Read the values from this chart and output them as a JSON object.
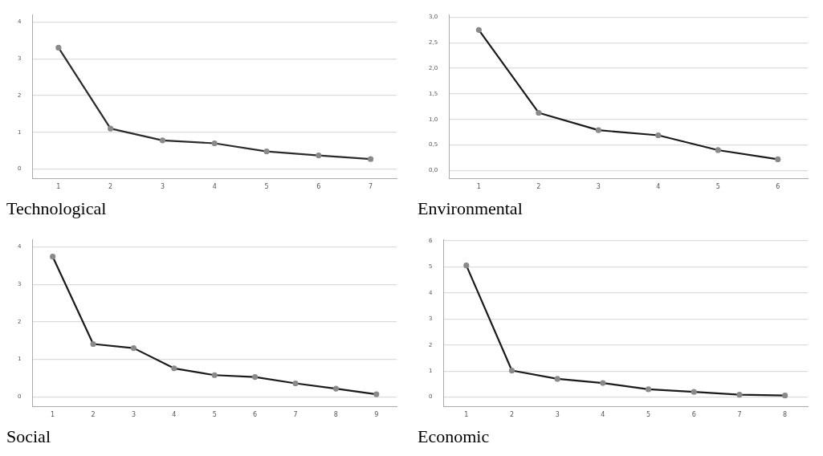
{
  "chart_data": [
    {
      "type": "line",
      "title": "Technological",
      "categories": [
        "1",
        "2",
        "3",
        "4",
        "5",
        "6",
        "7"
      ],
      "series": [
        {
          "color": "#2b2b2b",
          "values": [
            3.3,
            1.1,
            0.78,
            0.7,
            0.48,
            0.37,
            0.27
          ]
        }
      ],
      "ylim": [
        -0.25,
        4.2
      ],
      "yticks": [
        0,
        1,
        2,
        3,
        4
      ],
      "grid": "y",
      "marker": "circle",
      "legend": false
    },
    {
      "type": "line",
      "title": "Environmental",
      "categories": [
        "1",
        "2",
        "3",
        "4",
        "5",
        "6"
      ],
      "series": [
        {
          "color": "#1a1a1a",
          "values": [
            2.75,
            1.13,
            0.79,
            0.69,
            0.4,
            0.22
          ]
        }
      ],
      "ylim": [
        -0.15,
        3.05
      ],
      "yticks": [
        {
          "value": 0,
          "label": "0,0"
        },
        {
          "value": 0.5,
          "label": "0,5"
        },
        {
          "value": 1,
          "label": "1,0"
        },
        {
          "value": 1.5,
          "label": "1,5"
        },
        {
          "value": 2,
          "label": "2,0"
        },
        {
          "value": 2.5,
          "label": "2,5"
        },
        {
          "value": 3,
          "label": "3,0"
        }
      ],
      "grid": "y",
      "marker": "circle",
      "legend": false
    },
    {
      "type": "line",
      "title": "Social",
      "categories": [
        "1",
        "2",
        "3",
        "4",
        "5",
        "6",
        "7",
        "8",
        "9"
      ],
      "series": [
        {
          "color": "#1a1a1a",
          "values": [
            3.74,
            1.41,
            1.3,
            0.76,
            0.58,
            0.53,
            0.36,
            0.22,
            0.07
          ]
        }
      ],
      "ylim": [
        -0.25,
        4.2
      ],
      "yticks": [
        0,
        1,
        2,
        3,
        4
      ],
      "grid": "y",
      "marker": "circle",
      "legend": false
    },
    {
      "type": "line",
      "title": "Economic",
      "categories": [
        "1",
        "2",
        "3",
        "4",
        "5",
        "6",
        "7",
        "8"
      ],
      "series": [
        {
          "color": "#1a1a1a",
          "values": [
            5.05,
            1.02,
            0.7,
            0.54,
            0.3,
            0.2,
            0.09,
            0.06
          ]
        }
      ],
      "ylim": [
        -0.35,
        6.05
      ],
      "yticks": [
        0,
        1,
        2,
        3,
        4,
        5,
        6
      ],
      "grid": "y",
      "marker": "circle",
      "legend": false
    }
  ]
}
